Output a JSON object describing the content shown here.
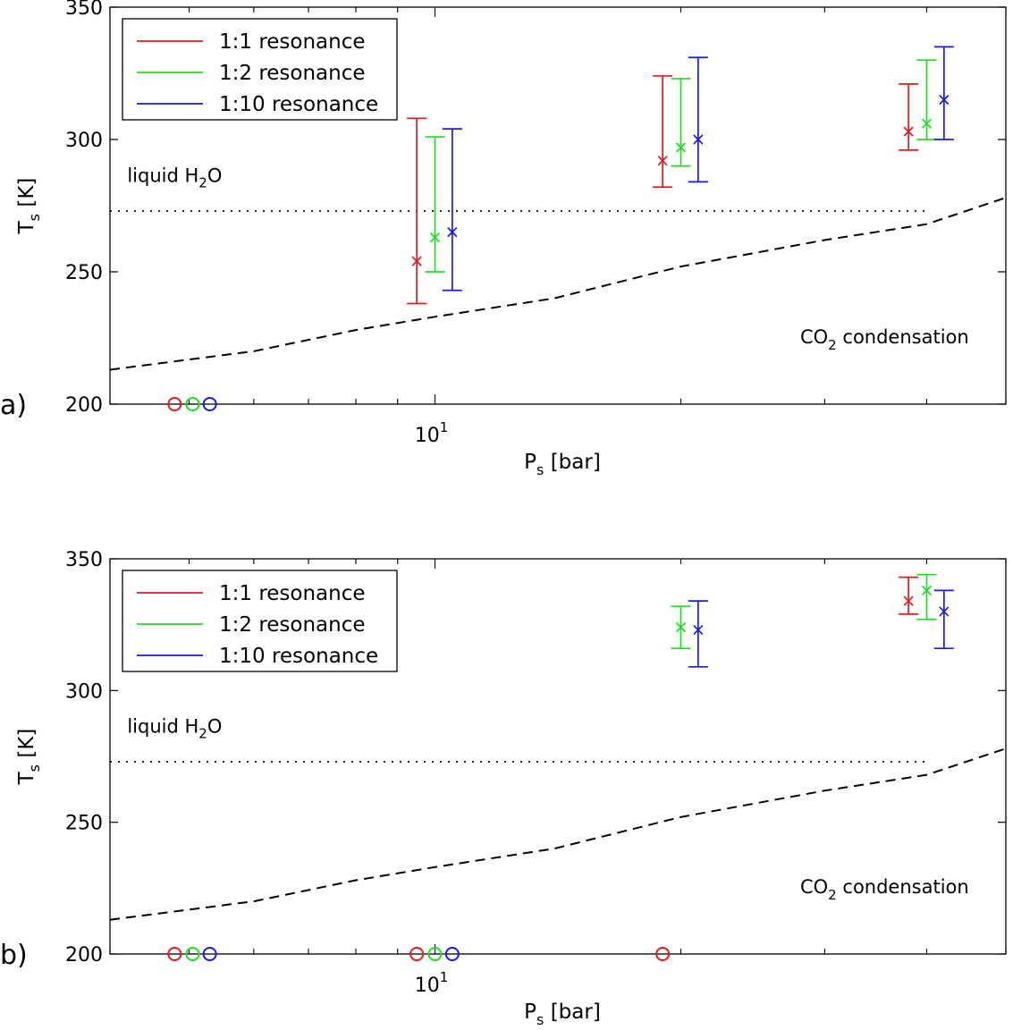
{
  "chart_data": [
    {
      "type": "errorbar",
      "panel_label": "a)",
      "xlabel": "P",
      "xlabel_sub": "s",
      "xlabel_unit": " [bar]",
      "ylabel": "T",
      "ylabel_sub": "s",
      "ylabel_unit": " [K]",
      "xscale": "log",
      "xlim": [
        4,
        50
      ],
      "ylim": [
        200,
        350
      ],
      "yticks": [
        200,
        250,
        300,
        350
      ],
      "xtick_label": {
        "base": "10",
        "exp": "1"
      },
      "grid": false,
      "legend_position": "top-left",
      "series": [
        {
          "name": "1:1 resonance",
          "color": "#e41a1c",
          "points": [
            {
              "x": 9.5,
              "y": 254,
              "ylow": 238,
              "yhigh": 308
            },
            {
              "x": 19.0,
              "y": 292,
              "ylow": 282,
              "yhigh": 324
            },
            {
              "x": 38.0,
              "y": 303,
              "ylow": 296,
              "yhigh": 321
            }
          ],
          "circles": [
            {
              "x": 4.8,
              "y": 200
            }
          ]
        },
        {
          "name": "1:2 resonance",
          "color": "#22dd22",
          "points": [
            {
              "x": 10.0,
              "y": 263,
              "ylow": 250,
              "yhigh": 301
            },
            {
              "x": 20.0,
              "y": 297,
              "ylow": 290,
              "yhigh": 323
            },
            {
              "x": 40.0,
              "y": 306,
              "ylow": 300,
              "yhigh": 330
            }
          ],
          "circles": [
            {
              "x": 5.05,
              "y": 200
            }
          ]
        },
        {
          "name": "1:10 resonance",
          "color": "#1a1ae0",
          "points": [
            {
              "x": 10.5,
              "y": 265,
              "ylow": 243,
              "yhigh": 304
            },
            {
              "x": 21.0,
              "y": 300,
              "ylow": 284,
              "yhigh": 331
            },
            {
              "x": 42.0,
              "y": 315,
              "ylow": 300,
              "yhigh": 335
            }
          ],
          "circles": [
            {
              "x": 5.3,
              "y": 200
            }
          ]
        }
      ],
      "liquid_line": {
        "y": 273,
        "x_end": 40.0
      },
      "liquid_label": {
        "text": "liquid H",
        "sub": "2",
        "after": "O",
        "x": 4.2,
        "y": 284
      },
      "co2_curve": [
        [
          4,
          213
        ],
        [
          6,
          220
        ],
        [
          8,
          228
        ],
        [
          10,
          233
        ],
        [
          14,
          240
        ],
        [
          20,
          252
        ],
        [
          30,
          262
        ],
        [
          40,
          268
        ],
        [
          50,
          278
        ]
      ],
      "co2_label": {
        "pre": "CO",
        "sub": "2",
        "post": " condensation",
        "x": 28,
        "y": 223
      }
    },
    {
      "type": "errorbar",
      "panel_label": "b)",
      "xlabel": "P",
      "xlabel_sub": "s",
      "xlabel_unit": " [bar]",
      "ylabel": "T",
      "ylabel_sub": "s",
      "ylabel_unit": " [K]",
      "xscale": "log",
      "xlim": [
        4,
        50
      ],
      "ylim": [
        200,
        350
      ],
      "yticks": [
        200,
        250,
        300,
        350
      ],
      "xtick_label": {
        "base": "10",
        "exp": "1"
      },
      "grid": false,
      "legend_position": "top-left",
      "series": [
        {
          "name": "1:1 resonance",
          "color": "#e41a1c",
          "points": [
            {
              "x": 38.0,
              "y": 334,
              "ylow": 329,
              "yhigh": 343
            }
          ],
          "circles": [
            {
              "x": 4.8,
              "y": 200
            },
            {
              "x": 9.5,
              "y": 200
            },
            {
              "x": 19.0,
              "y": 200
            }
          ]
        },
        {
          "name": "1:2 resonance",
          "color": "#22dd22",
          "points": [
            {
              "x": 20.0,
              "y": 324,
              "ylow": 316,
              "yhigh": 332
            },
            {
              "x": 40.0,
              "y": 338,
              "ylow": 327,
              "yhigh": 344
            }
          ],
          "circles": [
            {
              "x": 5.05,
              "y": 200
            },
            {
              "x": 10.0,
              "y": 200
            }
          ]
        },
        {
          "name": "1:10 resonance",
          "color": "#1a1ae0",
          "points": [
            {
              "x": 21.0,
              "y": 323,
              "ylow": 309,
              "yhigh": 334
            },
            {
              "x": 42.0,
              "y": 330,
              "ylow": 316,
              "yhigh": 338
            }
          ],
          "circles": [
            {
              "x": 5.3,
              "y": 200
            },
            {
              "x": 10.5,
              "y": 200
            }
          ]
        }
      ],
      "liquid_line": {
        "y": 273,
        "x_end": 40.0
      },
      "liquid_label": {
        "text": "liquid H",
        "sub": "2",
        "after": "O",
        "x": 4.2,
        "y": 284
      },
      "co2_curve": [
        [
          4,
          213
        ],
        [
          6,
          220
        ],
        [
          8,
          228
        ],
        [
          10,
          233
        ],
        [
          14,
          240
        ],
        [
          20,
          252
        ],
        [
          30,
          262
        ],
        [
          40,
          268
        ],
        [
          50,
          278
        ]
      ],
      "co2_label": {
        "pre": "CO",
        "sub": "2",
        "post": " condensation",
        "x": 28,
        "y": 223
      }
    }
  ]
}
